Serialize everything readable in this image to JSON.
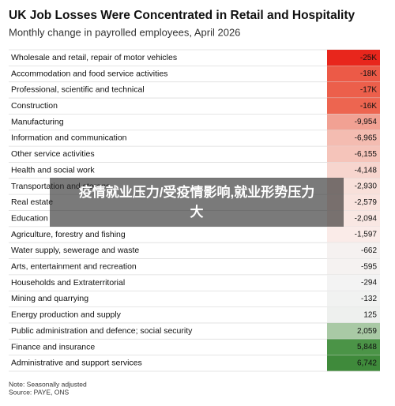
{
  "chart_data": {
    "type": "heatmap-table",
    "title": "UK Job Losses Were Concentrated in Retail and Hospitality",
    "subtitle": "Monthly change in payrolled employees, April 2026",
    "categories": [
      "Wholesale and retail, repair of motor vehicles",
      "Accommodation and food service activities",
      "Professional, scientific and technical",
      "Construction",
      "Manufacturing",
      "Information and communication",
      "Other service activities",
      "Health and social work",
      "Transportation and storage",
      "Real estate",
      "Education",
      "Agriculture, forestry and fishing",
      "Water supply, sewerage and waste",
      "Arts, entertainment and recreation",
      "Households and Extraterritorial",
      "Mining and quarrying",
      "Energy production and supply",
      "Public administration and defence; social security",
      "Finance and insurance",
      "Administrative and support services"
    ],
    "values": [
      -25000,
      -18000,
      -17000,
      -16000,
      -9954,
      -6965,
      -6155,
      -4148,
      -2930,
      -2579,
      -2094,
      -1597,
      -662,
      -595,
      -294,
      -132,
      125,
      2059,
      5848,
      6742
    ],
    "value_labels": [
      "-25K",
      "-18K",
      "-17K",
      "-16K",
      "-9,954",
      "-6,965",
      "-6,155",
      "-4,148",
      "-2,930",
      "-2,579",
      "-2,094",
      "-1,597",
      "-662",
      "-595",
      "-294",
      "-132",
      "125",
      "2,059",
      "5,848",
      "6,742"
    ],
    "colors": [
      "#e8261c",
      "#ec5a47",
      "#ec5f4b",
      "#ed6550",
      "#f1a193",
      "#f4bcb1",
      "#f5c4ba",
      "#f7d5ce",
      "#f8e0da",
      "#f9e3de",
      "#f9e7e3",
      "#faebe8",
      "#f5f1f0",
      "#f5f2f1",
      "#f3f3f3",
      "#f1f2f1",
      "#eef0ee",
      "#a9c9a5",
      "#4b9447",
      "#3f8a3b"
    ],
    "note": "Note: Seasonally adjusted",
    "source": "Source: PAYE, ONS",
    "overlay_caption": "疫情就业压力/受疫情影响,就业形势压力大"
  }
}
